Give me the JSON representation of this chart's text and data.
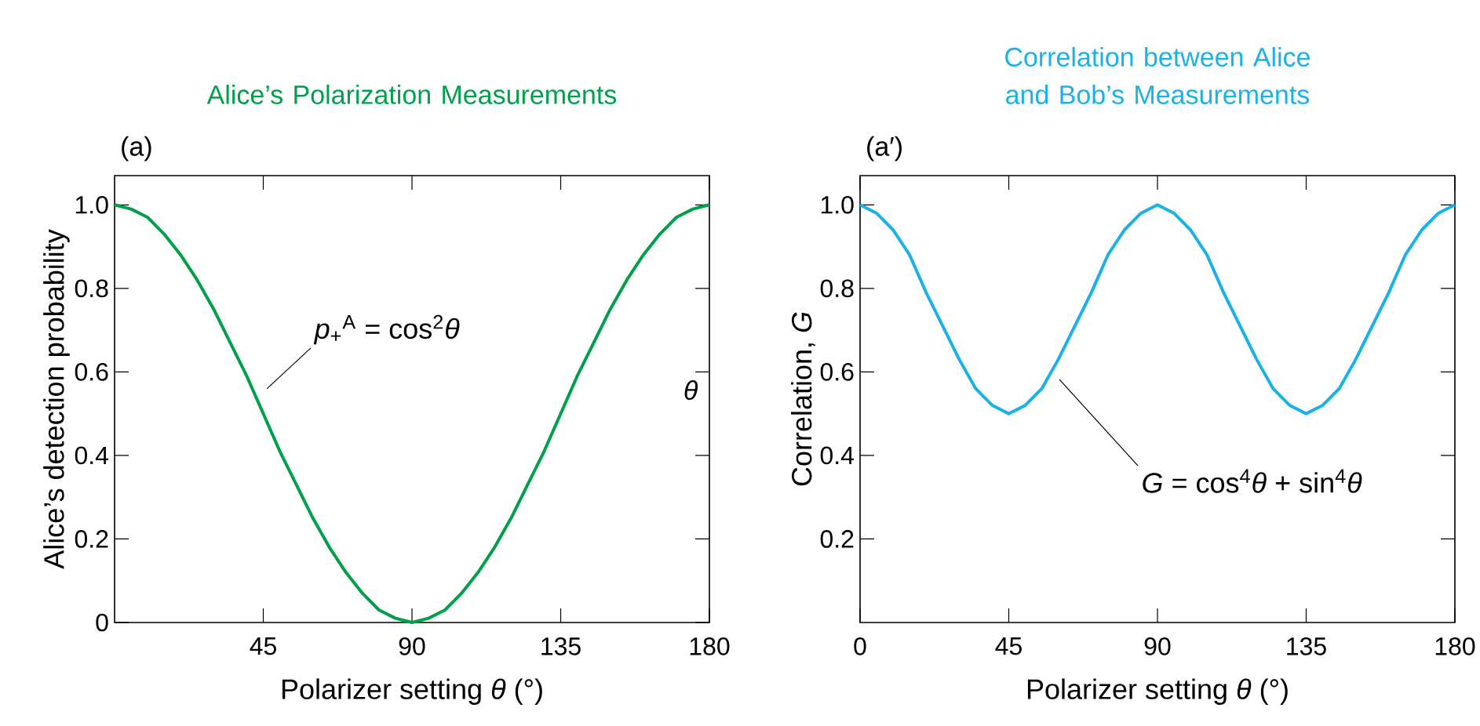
{
  "chart_data": [
    {
      "type": "line",
      "title": "Alice’s Polarization Measurements",
      "xlabel": "Polarizer setting *θ* (°)",
      "ylabel": "Alice’s detection probability",
      "x": [
        0,
        5,
        10,
        15,
        20,
        25,
        30,
        35,
        40,
        45,
        50,
        55,
        60,
        65,
        70,
        75,
        80,
        85,
        90,
        95,
        100,
        105,
        110,
        115,
        120,
        125,
        130,
        135,
        140,
        145,
        150,
        155,
        160,
        165,
        170,
        175,
        180
      ],
      "series": [
        {
          "color": "#00a04a",
          "values": [
            1.0,
            0.99,
            0.97,
            0.93,
            0.88,
            0.82,
            0.75,
            0.67,
            0.59,
            0.5,
            0.41,
            0.33,
            0.25,
            0.18,
            0.12,
            0.07,
            0.03,
            0.01,
            0.0,
            0.01,
            0.03,
            0.07,
            0.12,
            0.18,
            0.25,
            0.33,
            0.41,
            0.5,
            0.59,
            0.67,
            0.75,
            0.82,
            0.88,
            0.93,
            0.97,
            0.99,
            1.0
          ]
        }
      ],
      "xlim": [
        0,
        180
      ],
      "ylim": [
        0,
        1.07
      ],
      "xticks": [
        45,
        90,
        135,
        180
      ],
      "yticks": [
        0,
        0.2,
        0.4,
        0.6,
        0.8,
        {
          "value": 1,
          "label": "1.0"
        }
      ],
      "annotations": [
        "(a)",
        "*p*$_{+}$$^{A}$ = cos$^{2}$*θ*",
        "*θ*"
      ]
    },
    {
      "type": "line",
      "title": "Correlation between Alice and Bob’s Measurements",
      "xlabel": "Polarizer setting *θ* (°)",
      "ylabel": "Correlation, *G*",
      "x": [
        0,
        5,
        10,
        15,
        20,
        25,
        30,
        35,
        40,
        45,
        50,
        55,
        60,
        65,
        70,
        75,
        80,
        85,
        90,
        95,
        100,
        105,
        110,
        115,
        120,
        125,
        130,
        135,
        140,
        145,
        150,
        155,
        160,
        165,
        170,
        175,
        180
      ],
      "series": [
        {
          "color": "#1ab0e8",
          "values": [
            1.0,
            0.98,
            0.94,
            0.88,
            0.79,
            0.71,
            0.63,
            0.56,
            0.52,
            0.5,
            0.52,
            0.56,
            0.63,
            0.71,
            0.79,
            0.88,
            0.94,
            0.98,
            1.0,
            0.98,
            0.94,
            0.88,
            0.79,
            0.71,
            0.63,
            0.56,
            0.52,
            0.5,
            0.52,
            0.56,
            0.63,
            0.71,
            0.79,
            0.88,
            0.94,
            0.98,
            1.0
          ]
        }
      ],
      "xlim": [
        0,
        180
      ],
      "ylim": [
        0,
        1.07
      ],
      "xticks": [
        0,
        45,
        90,
        135,
        180
      ],
      "yticks": [
        0.2,
        0.4,
        0.6,
        0.8,
        {
          "value": 1,
          "label": "1.0"
        }
      ],
      "annotations": [
        "(a′)",
        "*G* = cos$^{4}$*θ* + sin$^{4}$*θ*"
      ]
    }
  ]
}
